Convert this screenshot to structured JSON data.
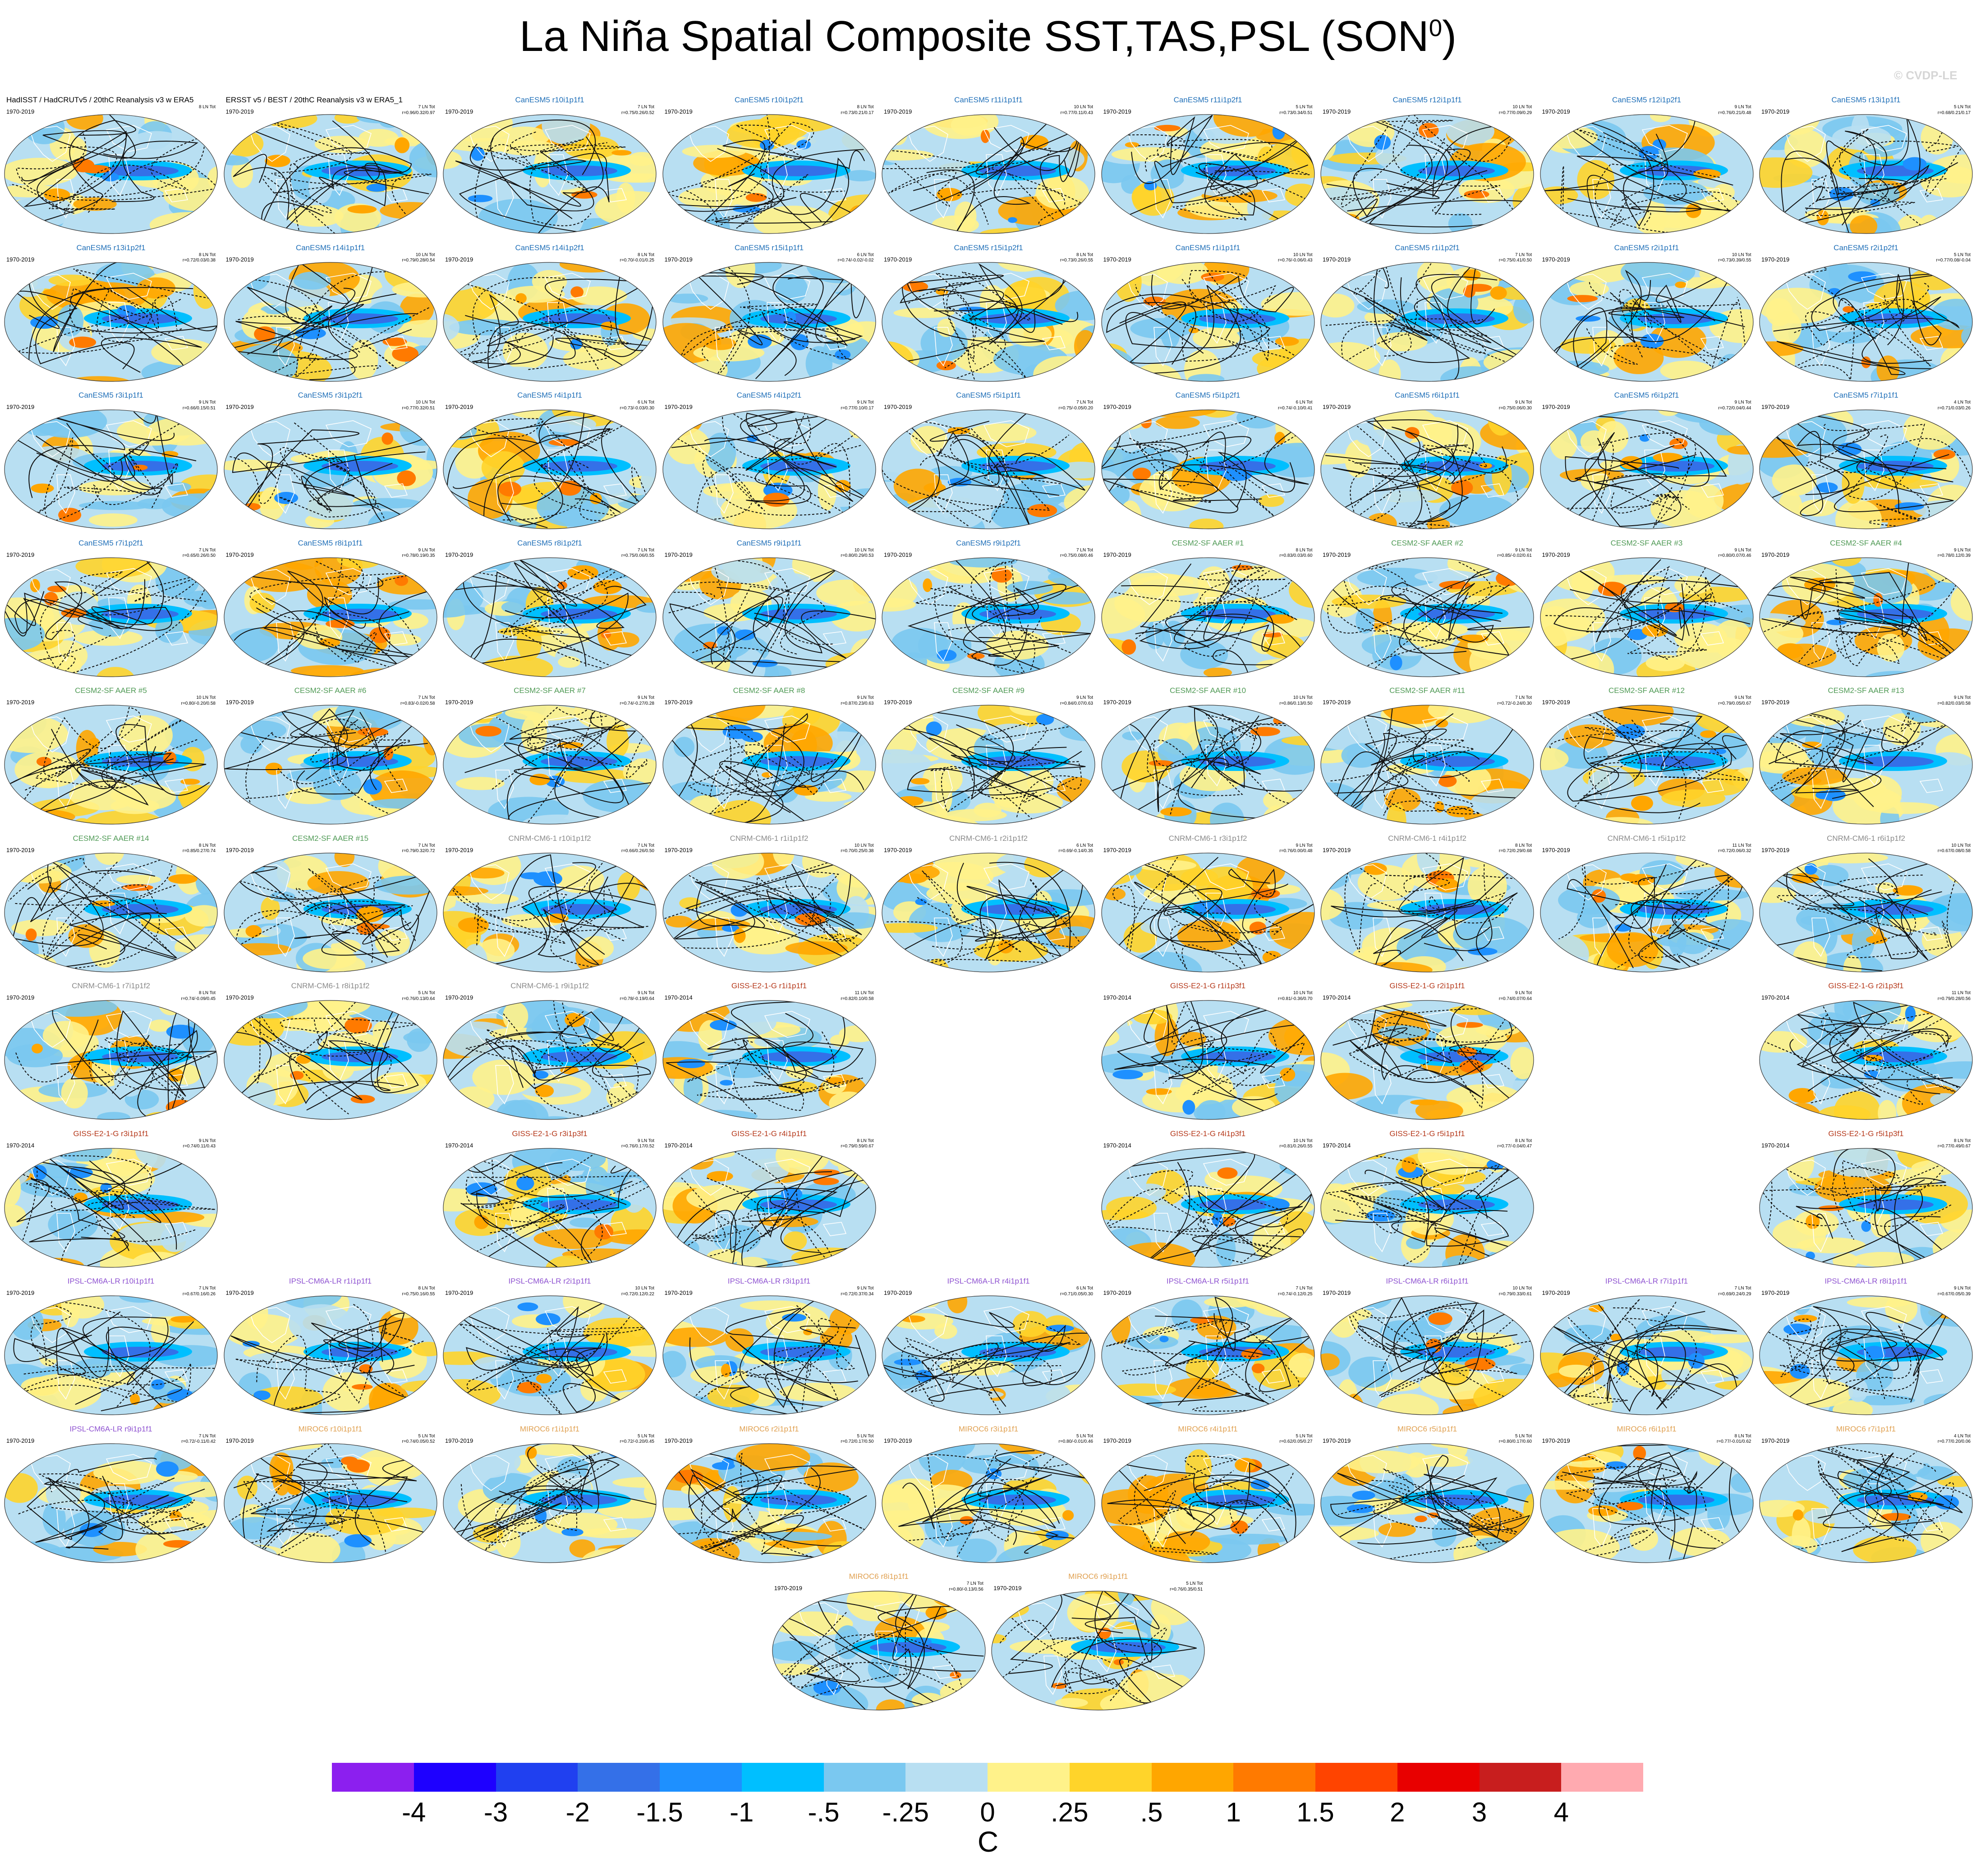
{
  "title": "La Niña Spatial Composite SST,TAS,PSL (SON",
  "title_sup": "0",
  "title_close": ")",
  "copyright": "© CVDP-LE",
  "colorbar": {
    "colors": [
      "#8c1fef",
      "#1e00ff",
      "#2040f0",
      "#3470e8",
      "#1e90ff",
      "#00bfff",
      "#7ac8f0",
      "#b8dff2",
      "#fff28a",
      "#ffd42a",
      "#ffa600",
      "#ff7a00",
      "#ff4400",
      "#e80000",
      "#c81e1e",
      "#ffaab0"
    ],
    "ticks": [
      "-4",
      "-3",
      "-2",
      "-1.5",
      "-1",
      "-.5",
      "-.25",
      "0",
      ".25",
      ".5",
      "1",
      "1.5",
      "2",
      "3",
      "4"
    ],
    "unit": "C"
  },
  "model_colors": {
    "obs": "#000000",
    "CanESM5": "#1f6fb8",
    "CESM2-SF AAER": "#4f9a55",
    "CNRM-CM6-1": "#8a8a8a",
    "GISS-E2-1-G": "#b5381a",
    "IPSL-CM6A-LR": "#8f53d1",
    "MIROC6": "#e0a050"
  },
  "panels": [
    {
      "model": "obs",
      "title": "HadISST / HadCRUTv5 / 20thC Reanalysis v3 w ERA5",
      "years": "1970-2019",
      "count": "8 LN Tot",
      "stats": "",
      "row": 0,
      "col": 0
    },
    {
      "model": "obs",
      "title": "ERSST v5 / BEST / 20thC Reanalysis v3 w ERA5_1",
      "years": "1970-2019",
      "count": "7 LN Tot",
      "stats": "r=0.96/0.32/0.97",
      "row": 0,
      "col": 1
    },
    {
      "model": "CanESM5",
      "title": "CanESM5 r10i1p1f1",
      "years": "1970-2019",
      "count": "7 LN Tot",
      "stats": "r=0.75/0.26/0.52",
      "row": 0,
      "col": 2
    },
    {
      "model": "CanESM5",
      "title": "CanESM5 r10i1p2f1",
      "years": "1970-2019",
      "count": "8 LN Tot",
      "stats": "r=0.73/0.21/0.17",
      "row": 0,
      "col": 3
    },
    {
      "model": "CanESM5",
      "title": "CanESM5 r11i1p1f1",
      "years": "1970-2019",
      "count": "10 LN Tot",
      "stats": "r=0.77/0.11/0.43",
      "row": 0,
      "col": 4
    },
    {
      "model": "CanESM5",
      "title": "CanESM5 r11i1p2f1",
      "years": "1970-2019",
      "count": "5 LN Tot",
      "stats": "r=0.73/0.34/0.51",
      "row": 0,
      "col": 5
    },
    {
      "model": "CanESM5",
      "title": "CanESM5 r12i1p1f1",
      "years": "1970-2019",
      "count": "10 LN Tot",
      "stats": "r=0.77/0.09/0.29",
      "row": 0,
      "col": 6
    },
    {
      "model": "CanESM5",
      "title": "CanESM5 r12i1p2f1",
      "years": "1970-2019",
      "count": "9 LN Tot",
      "stats": "r=0.76/0.21/0.48",
      "row": 0,
      "col": 7
    },
    {
      "model": "CanESM5",
      "title": "CanESM5 r13i1p1f1",
      "years": "1970-2019",
      "count": "5 LN Tot",
      "stats": "r=0.68/0.21/0.17",
      "row": 0,
      "col": 8
    },
    {
      "model": "CanESM5",
      "title": "CanESM5 r13i1p2f1",
      "years": "1970-2019",
      "count": "8 LN Tot",
      "stats": "r=0.72/0.03/0.38",
      "row": 1,
      "col": 0
    },
    {
      "model": "CanESM5",
      "title": "CanESM5 r14i1p1f1",
      "years": "1970-2019",
      "count": "10 LN Tot",
      "stats": "r=0.79/0.28/0.54",
      "row": 1,
      "col": 1
    },
    {
      "model": "CanESM5",
      "title": "CanESM5 r14i1p2f1",
      "years": "1970-2019",
      "count": "8 LN Tot",
      "stats": "r=0.70/-0.01/0.25",
      "row": 1,
      "col": 2
    },
    {
      "model": "CanESM5",
      "title": "CanESM5 r15i1p1f1",
      "years": "1970-2019",
      "count": "6 LN Tot",
      "stats": "r=0.74/-0.02/-0.02",
      "row": 1,
      "col": 3
    },
    {
      "model": "CanESM5",
      "title": "CanESM5 r15i1p2f1",
      "years": "1970-2019",
      "count": "8 LN Tot",
      "stats": "r=0.73/0.26/0.55",
      "row": 1,
      "col": 4
    },
    {
      "model": "CanESM5",
      "title": "CanESM5 r1i1p1f1",
      "years": "1970-2019",
      "count": "10 LN Tot",
      "stats": "r=0.76/-0.06/0.43",
      "row": 1,
      "col": 5
    },
    {
      "model": "CanESM5",
      "title": "CanESM5 r1i1p2f1",
      "years": "1970-2019",
      "count": "7 LN Tot",
      "stats": "r=0.75/0.41/0.50",
      "row": 1,
      "col": 6
    },
    {
      "model": "CanESM5",
      "title": "CanESM5 r2i1p1f1",
      "years": "1970-2019",
      "count": "10 LN Tot",
      "stats": "r=0.73/0.39/0.55",
      "row": 1,
      "col": 7
    },
    {
      "model": "CanESM5",
      "title": "CanESM5 r2i1p2f1",
      "years": "1970-2019",
      "count": "5 LN Tot",
      "stats": "r=0.77/0.08/-0.04",
      "row": 1,
      "col": 8
    },
    {
      "model": "CanESM5",
      "title": "CanESM5 r3i1p1f1",
      "years": "1970-2019",
      "count": "9 LN Tot",
      "stats": "r=0.66/0.15/0.51",
      "row": 2,
      "col": 0
    },
    {
      "model": "CanESM5",
      "title": "CanESM5 r3i1p2f1",
      "years": "1970-2019",
      "count": "10 LN Tot",
      "stats": "r=0.77/0.32/0.51",
      "row": 2,
      "col": 1
    },
    {
      "model": "CanESM5",
      "title": "CanESM5 r4i1p1f1",
      "years": "1970-2019",
      "count": "6 LN Tot",
      "stats": "r=0.73/-0.03/0.30",
      "row": 2,
      "col": 2
    },
    {
      "model": "CanESM5",
      "title": "CanESM5 r4i1p2f1",
      "years": "1970-2019",
      "count": "9 LN Tot",
      "stats": "r=0.77/0.10/0.17",
      "row": 2,
      "col": 3
    },
    {
      "model": "CanESM5",
      "title": "CanESM5 r5i1p1f1",
      "years": "1970-2019",
      "count": "7 LN Tot",
      "stats": "r=0.75/-0.05/0.20",
      "row": 2,
      "col": 4
    },
    {
      "model": "CanESM5",
      "title": "CanESM5 r5i1p2f1",
      "years": "1970-2019",
      "count": "6 LN Tot",
      "stats": "r=0.74/-0.10/0.41",
      "row": 2,
      "col": 5
    },
    {
      "model": "CanESM5",
      "title": "CanESM5 r6i1p1f1",
      "years": "1970-2019",
      "count": "9 LN Tot",
      "stats": "r=0.75/0.06/0.30",
      "row": 2,
      "col": 6
    },
    {
      "model": "CanESM5",
      "title": "CanESM5 r6i1p2f1",
      "years": "1970-2019",
      "count": "9 LN Tot",
      "stats": "r=0.72/0.04/0.44",
      "row": 2,
      "col": 7
    },
    {
      "model": "CanESM5",
      "title": "CanESM5 r7i1p1f1",
      "years": "1970-2019",
      "count": "4 LN Tot",
      "stats": "r=0.71/0.03/0.26",
      "row": 2,
      "col": 8
    },
    {
      "model": "CanESM5",
      "title": "CanESM5 r7i1p2f1",
      "years": "1970-2019",
      "count": "7 LN Tot",
      "stats": "r=0.65/0.26/0.50",
      "row": 3,
      "col": 0
    },
    {
      "model": "CanESM5",
      "title": "CanESM5 r8i1p1f1",
      "years": "1970-2019",
      "count": "9 LN Tot",
      "stats": "r=0.78/0.19/0.35",
      "row": 3,
      "col": 1
    },
    {
      "model": "CanESM5",
      "title": "CanESM5 r8i1p2f1",
      "years": "1970-2019",
      "count": "7 LN Tot",
      "stats": "r=0.75/0.06/0.55",
      "row": 3,
      "col": 2
    },
    {
      "model": "CanESM5",
      "title": "CanESM5 r9i1p1f1",
      "years": "1970-2019",
      "count": "10 LN Tot",
      "stats": "r=0.80/0.29/0.53",
      "row": 3,
      "col": 3
    },
    {
      "model": "CanESM5",
      "title": "CanESM5 r9i1p2f1",
      "years": "1970-2019",
      "count": "7 LN Tot",
      "stats": "r=0.75/0.08/0.46",
      "row": 3,
      "col": 4
    },
    {
      "model": "CESM2-SF AAER",
      "title": "CESM2-SF AAER #1",
      "years": "1970-2019",
      "count": "8 LN Tot",
      "stats": "r=0.83/0.03/0.60",
      "row": 3,
      "col": 5
    },
    {
      "model": "CESM2-SF AAER",
      "title": "CESM2-SF AAER #2",
      "years": "1970-2019",
      "count": "9 LN Tot",
      "stats": "r=0.85/-0.02/0.61",
      "row": 3,
      "col": 6
    },
    {
      "model": "CESM2-SF AAER",
      "title": "CESM2-SF AAER #3",
      "years": "1970-2019",
      "count": "9 LN Tot",
      "stats": "r=0.80/0.07/0.46",
      "row": 3,
      "col": 7
    },
    {
      "model": "CESM2-SF AAER",
      "title": "CESM2-SF AAER #4",
      "years": "1970-2019",
      "count": "9 LN Tot",
      "stats": "r=0.78/0.12/0.39",
      "row": 3,
      "col": 8
    },
    {
      "model": "CESM2-SF AAER",
      "title": "CESM2-SF AAER #5",
      "years": "1970-2019",
      "count": "10 LN Tot",
      "stats": "r=0.80/-0.20/0.58",
      "row": 4,
      "col": 0
    },
    {
      "model": "CESM2-SF AAER",
      "title": "CESM2-SF AAER #6",
      "years": "1970-2019",
      "count": "7 LN Tot",
      "stats": "r=0.83/-0.02/0.58",
      "row": 4,
      "col": 1
    },
    {
      "model": "CESM2-SF AAER",
      "title": "CESM2-SF AAER #7",
      "years": "1970-2019",
      "count": "9 LN Tot",
      "stats": "r=0.74/-0.27/0.28",
      "row": 4,
      "col": 2
    },
    {
      "model": "CESM2-SF AAER",
      "title": "CESM2-SF AAER #8",
      "years": "1970-2019",
      "count": "9 LN Tot",
      "stats": "r=0.87/0.23/0.63",
      "row": 4,
      "col": 3
    },
    {
      "model": "CESM2-SF AAER",
      "title": "CESM2-SF AAER #9",
      "years": "1970-2019",
      "count": "9 LN Tot",
      "stats": "r=0.84/0.07/0.63",
      "row": 4,
      "col": 4
    },
    {
      "model": "CESM2-SF AAER",
      "title": "CESM2-SF AAER #10",
      "years": "1970-2019",
      "count": "10 LN Tot",
      "stats": "r=0.86/0.13/0.50",
      "row": 4,
      "col": 5
    },
    {
      "model": "CESM2-SF AAER",
      "title": "CESM2-SF AAER #11",
      "years": "1970-2019",
      "count": "7 LN Tot",
      "stats": "r=0.72/-0.24/0.30",
      "row": 4,
      "col": 6
    },
    {
      "model": "CESM2-SF AAER",
      "title": "CESM2-SF AAER #12",
      "years": "1970-2019",
      "count": "9 LN Tot",
      "stats": "r=0.79/0.05/0.67",
      "row": 4,
      "col": 7
    },
    {
      "model": "CESM2-SF AAER",
      "title": "CESM2-SF AAER #13",
      "years": "1970-2019",
      "count": "9 LN Tot",
      "stats": "r=0.82/0.03/0.58",
      "row": 4,
      "col": 8
    },
    {
      "model": "CESM2-SF AAER",
      "title": "CESM2-SF AAER #14",
      "years": "1970-2019",
      "count": "8 LN Tot",
      "stats": "r=0.85/0.27/0.74",
      "row": 5,
      "col": 0
    },
    {
      "model": "CESM2-SF AAER",
      "title": "CESM2-SF AAER #15",
      "years": "1970-2019",
      "count": "7 LN Tot",
      "stats": "r=0.79/0.32/0.72",
      "row": 5,
      "col": 1
    },
    {
      "model": "CNRM-CM6-1",
      "title": "CNRM-CM6-1 r10i1p1f2",
      "years": "1970-2019",
      "count": "7 LN Tot",
      "stats": "r=0.66/0.26/0.50",
      "row": 5,
      "col": 2
    },
    {
      "model": "CNRM-CM6-1",
      "title": "CNRM-CM6-1 r1i1p1f2",
      "years": "1970-2019",
      "count": "10 LN Tot",
      "stats": "r=0.70/0.25/0.38",
      "row": 5,
      "col": 3
    },
    {
      "model": "CNRM-CM6-1",
      "title": "CNRM-CM6-1 r2i1p1f2",
      "years": "1970-2019",
      "count": "6 LN Tot",
      "stats": "r=0.69/-0.14/0.35",
      "row": 5,
      "col": 4
    },
    {
      "model": "CNRM-CM6-1",
      "title": "CNRM-CM6-1 r3i1p1f2",
      "years": "1970-2019",
      "count": "9 LN Tot",
      "stats": "r=0.76/0.00/0.48",
      "row": 5,
      "col": 5
    },
    {
      "model": "CNRM-CM6-1",
      "title": "CNRM-CM6-1 r4i1p1f2",
      "years": "1970-2019",
      "count": "8 LN Tot",
      "stats": "r=0.72/0.29/0.68",
      "row": 5,
      "col": 6
    },
    {
      "model": "CNRM-CM6-1",
      "title": "CNRM-CM6-1 r5i1p1f2",
      "years": "1970-2019",
      "count": "11 LN Tot",
      "stats": "r=0.72/0.06/0.32",
      "row": 5,
      "col": 7
    },
    {
      "model": "CNRM-CM6-1",
      "title": "CNRM-CM6-1 r6i1p1f2",
      "years": "1970-2019",
      "count": "10 LN Tot",
      "stats": "r=0.67/0.08/0.58",
      "row": 5,
      "col": 8
    },
    {
      "model": "CNRM-CM6-1",
      "title": "CNRM-CM6-1 r7i1p1f2",
      "years": "1970-2019",
      "count": "8 LN Tot",
      "stats": "r=0.74/-0.09/0.45",
      "row": 6,
      "col": 0
    },
    {
      "model": "CNRM-CM6-1",
      "title": "CNRM-CM6-1 r8i1p1f2",
      "years": "1970-2019",
      "count": "5 LN Tot",
      "stats": "r=0.76/0.13/0.64",
      "row": 6,
      "col": 1
    },
    {
      "model": "CNRM-CM6-1",
      "title": "CNRM-CM6-1 r9i1p1f2",
      "years": "1970-2019",
      "count": "9 LN Tot",
      "stats": "r=0.78/-0.19/0.64",
      "row": 6,
      "col": 2
    },
    {
      "model": "GISS-E2-1-G",
      "title": "GISS-E2-1-G r1i1p1f1",
      "years": "1970-2014",
      "count": "11 LN Tot",
      "stats": "r=0.82/0.10/0.58",
      "row": 6,
      "col": 3
    },
    {
      "model": "GISS-E2-1-G",
      "title": "GISS-E2-1-G r1i1p3f1",
      "years": "1970-2014",
      "count": "10 LN Tot",
      "stats": "r=0.81/-0.36/0.70",
      "row": 6,
      "col": 5
    },
    {
      "model": "GISS-E2-1-G",
      "title": "GISS-E2-1-G r2i1p1f1",
      "years": "1970-2014",
      "count": "9 LN Tot",
      "stats": "r=0.74/0.07/0.64",
      "row": 6,
      "col": 6
    },
    {
      "model": "GISS-E2-1-G",
      "title": "GISS-E2-1-G r2i1p3f1",
      "years": "1970-2014",
      "count": "11 LN Tot",
      "stats": "r=0.79/0.28/0.56",
      "row": 6,
      "col": 8
    },
    {
      "model": "GISS-E2-1-G",
      "title": "GISS-E2-1-G r3i1p1f1",
      "years": "1970-2014",
      "count": "9 LN Tot",
      "stats": "r=0.74/0.11/0.43",
      "row": 7,
      "col": 0
    },
    {
      "model": "GISS-E2-1-G",
      "title": "GISS-E2-1-G r3i1p3f1",
      "years": "1970-2014",
      "count": "9 LN Tot",
      "stats": "r=0.76/0.17/0.52",
      "row": 7,
      "col": 2
    },
    {
      "model": "GISS-E2-1-G",
      "title": "GISS-E2-1-G r4i1p1f1",
      "years": "1970-2014",
      "count": "8 LN Tot",
      "stats": "r=0.79/0.59/0.67",
      "row": 7,
      "col": 3
    },
    {
      "model": "GISS-E2-1-G",
      "title": "GISS-E2-1-G r4i1p3f1",
      "years": "1970-2014",
      "count": "10 LN Tot",
      "stats": "r=0.81/0.26/0.55",
      "row": 7,
      "col": 5
    },
    {
      "model": "GISS-E2-1-G",
      "title": "GISS-E2-1-G r5i1p1f1",
      "years": "1970-2014",
      "count": "8 LN Tot",
      "stats": "r=0.77/-0.04/0.47",
      "row": 7,
      "col": 6
    },
    {
      "model": "GISS-E2-1-G",
      "title": "GISS-E2-1-G r5i1p3f1",
      "years": "1970-2014",
      "count": "8 LN Tot",
      "stats": "r=0.77/0.49/0.67",
      "row": 7,
      "col": 8
    },
    {
      "model": "IPSL-CM6A-LR",
      "title": "IPSL-CM6A-LR r10i1p1f1",
      "years": "1970-2019",
      "count": "7 LN Tot",
      "stats": "r=0.67/0.16/0.26",
      "row": 8,
      "col": 0
    },
    {
      "model": "IPSL-CM6A-LR",
      "title": "IPSL-CM6A-LR r1i1p1f1",
      "years": "1970-2019",
      "count": "8 LN Tot",
      "stats": "r=0.75/0.16/0.55",
      "row": 8,
      "col": 1
    },
    {
      "model": "IPSL-CM6A-LR",
      "title": "IPSL-CM6A-LR r2i1p1f1",
      "years": "1970-2019",
      "count": "10 LN Tot",
      "stats": "r=0.72/0.12/0.22",
      "row": 8,
      "col": 2
    },
    {
      "model": "IPSL-CM6A-LR",
      "title": "IPSL-CM6A-LR r3i1p1f1",
      "years": "1970-2019",
      "count": "9 LN Tot",
      "stats": "r=0.72/0.37/0.34",
      "row": 8,
      "col": 3
    },
    {
      "model": "IPSL-CM6A-LR",
      "title": "IPSL-CM6A-LR r4i1p1f1",
      "years": "1970-2019",
      "count": "6 LN Tot",
      "stats": "r=0.71/0.05/0.30",
      "row": 8,
      "col": 4
    },
    {
      "model": "IPSL-CM6A-LR",
      "title": "IPSL-CM6A-LR r5i1p1f1",
      "years": "1970-2019",
      "count": "7 LN Tot",
      "stats": "r=0.74/-0.12/0.25",
      "row": 8,
      "col": 5
    },
    {
      "model": "IPSL-CM6A-LR",
      "title": "IPSL-CM6A-LR r6i1p1f1",
      "years": "1970-2019",
      "count": "10 LN Tot",
      "stats": "r=0.79/0.33/0.61",
      "row": 8,
      "col": 6
    },
    {
      "model": "IPSL-CM6A-LR",
      "title": "IPSL-CM6A-LR r7i1p1f1",
      "years": "1970-2019",
      "count": "7 LN Tot",
      "stats": "r=0.69/0.24/0.29",
      "row": 8,
      "col": 7
    },
    {
      "model": "IPSL-CM6A-LR",
      "title": "IPSL-CM6A-LR r8i1p1f1",
      "years": "1970-2019",
      "count": "9 LN Tot",
      "stats": "r=0.67/0.05/0.39",
      "row": 8,
      "col": 8
    },
    {
      "model": "IPSL-CM6A-LR",
      "title": "IPSL-CM6A-LR r9i1p1f1",
      "years": "1970-2019",
      "count": "7 LN Tot",
      "stats": "r=0.72/-0.11/0.42",
      "row": 9,
      "col": 0
    },
    {
      "model": "MIROC6",
      "title": "MIROC6 r10i1p1f1",
      "years": "1970-2019",
      "count": "5 LN Tot",
      "stats": "r=0.74/0.05/0.52",
      "row": 9,
      "col": 1
    },
    {
      "model": "MIROC6",
      "title": "MIROC6 r1i1p1f1",
      "years": "1970-2019",
      "count": "5 LN Tot",
      "stats": "r=0.72/-0.20/0.45",
      "row": 9,
      "col": 2
    },
    {
      "model": "MIROC6",
      "title": "MIROC6 r2i1p1f1",
      "years": "1970-2019",
      "count": "5 LN Tot",
      "stats": "r=0.72/0.17/0.50",
      "row": 9,
      "col": 3
    },
    {
      "model": "MIROC6",
      "title": "MIROC6 r3i1p1f1",
      "years": "1970-2019",
      "count": "5 LN Tot",
      "stats": "r=0.80/-0.01/0.46",
      "row": 9,
      "col": 4
    },
    {
      "model": "MIROC6",
      "title": "MIROC6 r4i1p1f1",
      "years": "1970-2019",
      "count": "5 LN Tot",
      "stats": "r=0.62/0.05/0.27",
      "row": 9,
      "col": 5
    },
    {
      "model": "MIROC6",
      "title": "MIROC6 r5i1p1f1",
      "years": "1970-2019",
      "count": "5 LN Tot",
      "stats": "r=0.80/0.17/0.60",
      "row": 9,
      "col": 6
    },
    {
      "model": "MIROC6",
      "title": "MIROC6 r6i1p1f1",
      "years": "1970-2019",
      "count": "8 LN Tot",
      "stats": "r=0.77/-0.01/0.62",
      "row": 9,
      "col": 7
    },
    {
      "model": "MIROC6",
      "title": "MIROC6 r7i1p1f1",
      "years": "1970-2019",
      "count": "4 LN Tot",
      "stats": "r=0.77/0.20/0.06",
      "row": 9,
      "col": 8
    },
    {
      "model": "MIROC6",
      "title": "MIROC6 r8i1p1f1",
      "years": "1970-2019",
      "count": "7 LN Tot",
      "stats": "r=0.80/-0.13/0.56",
      "row": 10,
      "col": 3.5
    },
    {
      "model": "MIROC6",
      "title": "MIROC6 r9i1p1f1",
      "years": "1970-2019",
      "count": "5 LN Tot",
      "stats": "r=0.76/0.35/0.51",
      "row": 10,
      "col": 4.5
    }
  ]
}
